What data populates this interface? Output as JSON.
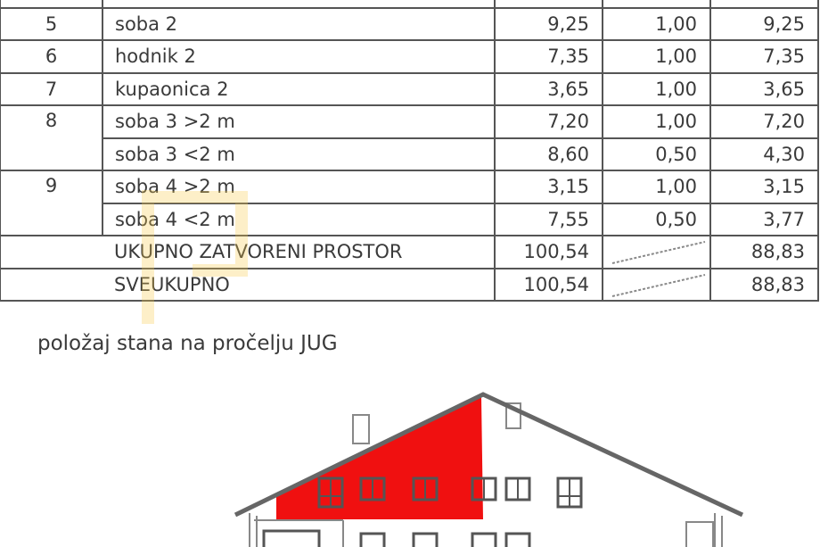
{
  "rows": [
    {
      "num": "5",
      "name": "soba 2",
      "area": "9,25",
      "coef": "1,00",
      "net": "9,25"
    },
    {
      "num": "6",
      "name": "hodnik 2",
      "area": "7,35",
      "coef": "1,00",
      "net": "7,35"
    },
    {
      "num": "7",
      "name": "kupaonica 2",
      "area": "3,65",
      "coef": "1,00",
      "net": "3,65"
    },
    {
      "num": "8",
      "name": "soba 3  >2 m",
      "area": "7,20",
      "coef": "1,00",
      "net": "7,20"
    },
    {
      "num": "",
      "name": "soba 3  <2 m",
      "area": "8,60",
      "coef": "0,50",
      "net": "4,30"
    },
    {
      "num": "9",
      "name": "soba 4  >2 m",
      "area": "3,15",
      "coef": "1,00",
      "net": "3,15"
    },
    {
      "num": "",
      "name": "soba 4  <2 m",
      "area": "7,55",
      "coef": "0,50",
      "net": "3,77"
    }
  ],
  "totals": [
    {
      "label": "UKUPNO ZATVORENI PROSTOR",
      "area": "100,54",
      "net": "88,83"
    },
    {
      "label": "SVEUKUPNO",
      "area": "100,54",
      "net": "88,83"
    }
  ],
  "caption": "položaj stana na pročelju JUG",
  "colors": {
    "highlight": "#f01010",
    "line": "#555555"
  }
}
